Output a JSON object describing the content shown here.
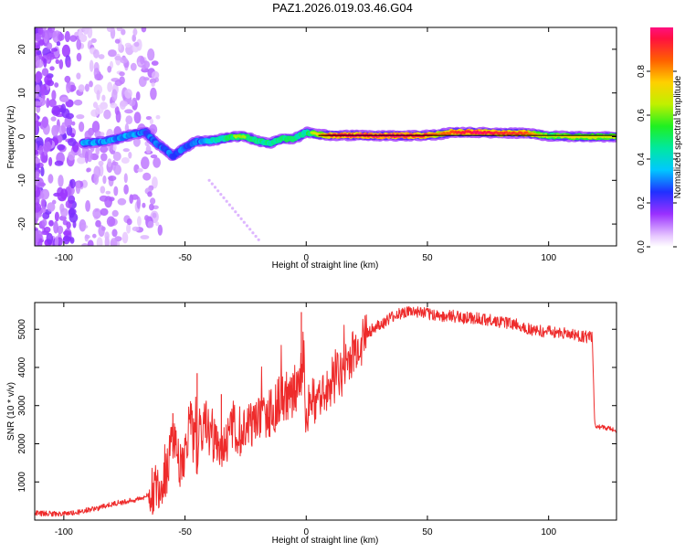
{
  "page_title": "PAZ1.2026.019.03.46.G04",
  "colors": {
    "snr_line": "#ee2b2b",
    "axis": "#000000",
    "fit_line": "#000000",
    "spectrum_low": "#7b18ff",
    "spectrum_high": "#ff2020"
  },
  "chart_data": [
    {
      "type": "heatmap",
      "title": "PAZ1.2026.019.03.46.G04",
      "xlabel": "Height of straight line (km)",
      "ylabel": "Frequency (Hz)",
      "xlim": [
        -112,
        128
      ],
      "ylim": [
        -25,
        25
      ],
      "xticks": [
        -100,
        -50,
        0,
        50,
        100
      ],
      "yticks": [
        -20,
        -10,
        0,
        10,
        20
      ],
      "colorbar": {
        "label": "Normalized spectral amplitude",
        "range": [
          0,
          1
        ],
        "ticks": [
          0.0,
          0.2,
          0.4,
          0.6,
          0.8
        ]
      },
      "frequency_ridge": {
        "x": [
          -92,
          -85,
          -78,
          -72,
          -66,
          -62,
          -58,
          -55,
          -50,
          -45,
          -40,
          -35,
          -30,
          -25,
          -20,
          -15,
          -10,
          -5,
          0,
          5,
          10,
          20,
          30,
          40,
          50,
          55,
          60,
          70,
          80,
          90,
          95,
          100,
          110,
          120,
          128
        ],
        "y": [
          -1.5,
          -1.2,
          -0.5,
          0.5,
          1.0,
          -1.5,
          -3.0,
          -4.5,
          -2.5,
          -1.0,
          -1.0,
          -0.5,
          0,
          0,
          -1.0,
          -1.5,
          -0.5,
          -0.5,
          1.0,
          0.5,
          0.3,
          0.3,
          0.2,
          0.2,
          0.3,
          0.5,
          1.0,
          1.0,
          0.8,
          0.8,
          0.5,
          0.2,
          0,
          0,
          0
        ],
        "amplitude": [
          0.35,
          0.35,
          0.35,
          0.35,
          0.3,
          0.3,
          0.3,
          0.3,
          0.3,
          0.3,
          0.45,
          0.5,
          0.6,
          0.6,
          0.55,
          0.55,
          0.6,
          0.55,
          0.55,
          0.7,
          0.9,
          0.95,
          0.95,
          0.95,
          0.9,
          0.8,
          0.85,
          0.95,
          0.9,
          0.85,
          0.75,
          0.6,
          0.7,
          0.65,
          0.65
        ]
      },
      "fit_line": {
        "x": [
          5,
          128
        ],
        "y": [
          0.3,
          0.3
        ]
      }
    },
    {
      "type": "line",
      "title": "",
      "xlabel": "Height of straight line (km)",
      "ylabel": "SNR (10 * v/v)",
      "xlim": [
        -112,
        128
      ],
      "ylim": [
        0,
        5700
      ],
      "xticks": [
        -100,
        -50,
        0,
        50,
        100
      ],
      "yticks": [
        1000,
        2000,
        3000,
        4000,
        5000
      ],
      "series": [
        {
          "name": "SNR",
          "x": [
            -112,
            -100,
            -95,
            -90,
            -85,
            -80,
            -75,
            -70,
            -65,
            -60,
            -57,
            -55,
            -52,
            -50,
            -48,
            -45,
            -42,
            -40,
            -37,
            -35,
            -32,
            -30,
            -27,
            -25,
            -22,
            -20,
            -17,
            -15,
            -12,
            -10,
            -7,
            -5,
            -3,
            -1,
            0,
            1,
            3,
            5,
            7,
            10,
            15,
            20,
            25,
            30,
            35,
            40,
            45,
            50,
            55,
            60,
            65,
            70,
            75,
            80,
            85,
            90,
            95,
            100,
            105,
            110,
            115,
            118,
            119,
            120,
            125,
            128
          ],
          "y": [
            180,
            160,
            200,
            260,
            330,
            420,
            480,
            540,
            650,
            900,
            1400,
            2200,
            1500,
            1700,
            2600,
            1600,
            2700,
            2200,
            2100,
            2000,
            2200,
            2500,
            2300,
            2600,
            2500,
            2600,
            2800,
            2800,
            3000,
            3300,
            3000,
            3500,
            3300,
            4400,
            2200,
            3000,
            3100,
            3400,
            3400,
            3600,
            3900,
            4400,
            4900,
            5100,
            5300,
            5450,
            5450,
            5400,
            5350,
            5350,
            5300,
            5300,
            5250,
            5200,
            5150,
            5050,
            4950,
            4950,
            4900,
            4850,
            4800,
            4780,
            2500,
            2450,
            2400,
            2350
          ]
        }
      ],
      "spikes": [
        {
          "x": -55,
          "y": 2800
        },
        {
          "x": -45,
          "y": 3850
        },
        {
          "x": -35,
          "y": 3300
        },
        {
          "x": -10,
          "y": 3600
        },
        {
          "x": -5,
          "y": 3800
        },
        {
          "x": -2,
          "y": 5450
        },
        {
          "x": 10,
          "y": 3700
        }
      ]
    }
  ]
}
